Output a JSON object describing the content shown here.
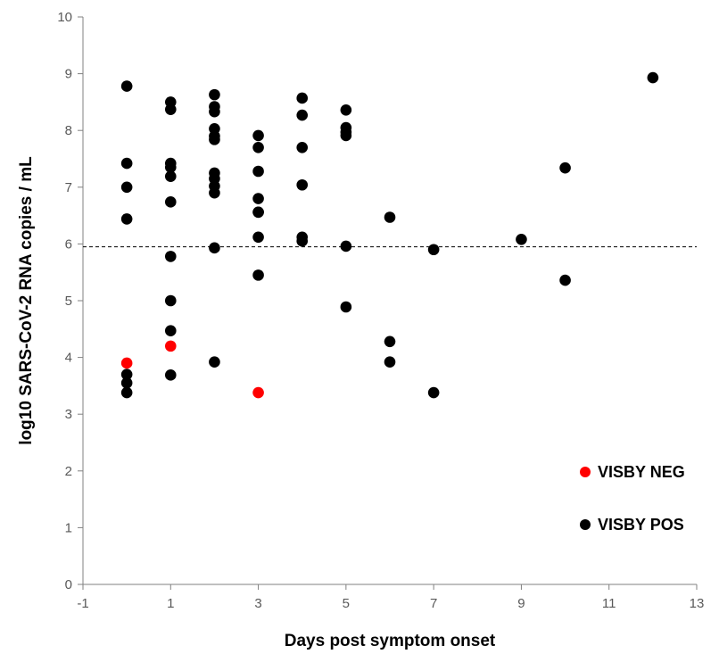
{
  "chart_data": {
    "type": "scatter",
    "xlabel": "Days post symptom onset",
    "ylabel": "log10 SARS-CoV-2 RNA copies / mL",
    "xlim": [
      -1,
      13
    ],
    "ylim": [
      0,
      10
    ],
    "xticks": [
      -1,
      1,
      3,
      5,
      7,
      9,
      11,
      13
    ],
    "yticks": [
      0,
      1,
      2,
      3,
      4,
      5,
      6,
      7,
      8,
      9,
      10
    ],
    "reference_line": {
      "y": 5.95,
      "style": "dashed"
    },
    "legend_position": "bottom-right",
    "grid": false,
    "series": [
      {
        "name": "VISBY NEG",
        "color": "#ff0000",
        "points": [
          {
            "x": 0,
            "y": 3.9
          },
          {
            "x": 1,
            "y": 4.2
          },
          {
            "x": 3,
            "y": 3.38
          }
        ]
      },
      {
        "name": "VISBY POS",
        "color": "#000000",
        "points": [
          {
            "x": 0,
            "y": 8.78
          },
          {
            "x": 0,
            "y": 7.42
          },
          {
            "x": 0,
            "y": 7.0
          },
          {
            "x": 0,
            "y": 6.44
          },
          {
            "x": 0,
            "y": 3.7
          },
          {
            "x": 0,
            "y": 3.55
          },
          {
            "x": 0,
            "y": 3.38
          },
          {
            "x": 1,
            "y": 8.5
          },
          {
            "x": 1,
            "y": 8.37
          },
          {
            "x": 1,
            "y": 7.42
          },
          {
            "x": 1,
            "y": 7.35
          },
          {
            "x": 1,
            "y": 7.19
          },
          {
            "x": 1,
            "y": 6.74
          },
          {
            "x": 1,
            "y": 5.78
          },
          {
            "x": 1,
            "y": 5.0
          },
          {
            "x": 1,
            "y": 4.47
          },
          {
            "x": 1,
            "y": 3.69
          },
          {
            "x": 2,
            "y": 8.63
          },
          {
            "x": 2,
            "y": 8.42
          },
          {
            "x": 2,
            "y": 8.33
          },
          {
            "x": 2,
            "y": 8.03
          },
          {
            "x": 2,
            "y": 7.9
          },
          {
            "x": 2,
            "y": 7.84
          },
          {
            "x": 2,
            "y": 7.25
          },
          {
            "x": 2,
            "y": 7.15
          },
          {
            "x": 2,
            "y": 7.02
          },
          {
            "x": 2,
            "y": 6.9
          },
          {
            "x": 2,
            "y": 5.93
          },
          {
            "x": 2,
            "y": 3.92
          },
          {
            "x": 3,
            "y": 7.91
          },
          {
            "x": 3,
            "y": 7.7
          },
          {
            "x": 3,
            "y": 7.28
          },
          {
            "x": 3,
            "y": 6.8
          },
          {
            "x": 3,
            "y": 6.56
          },
          {
            "x": 3,
            "y": 6.56
          },
          {
            "x": 3,
            "y": 6.12
          },
          {
            "x": 3,
            "y": 5.45
          },
          {
            "x": 4,
            "y": 8.57
          },
          {
            "x": 4,
            "y": 8.27
          },
          {
            "x": 4,
            "y": 7.7
          },
          {
            "x": 4,
            "y": 7.04
          },
          {
            "x": 4,
            "y": 6.12
          },
          {
            "x": 4,
            "y": 6.05
          },
          {
            "x": 5,
            "y": 8.36
          },
          {
            "x": 5,
            "y": 8.05
          },
          {
            "x": 5,
            "y": 7.97
          },
          {
            "x": 5,
            "y": 7.91
          },
          {
            "x": 5,
            "y": 5.96
          },
          {
            "x": 5,
            "y": 4.89
          },
          {
            "x": 6,
            "y": 6.47
          },
          {
            "x": 6,
            "y": 4.28
          },
          {
            "x": 6,
            "y": 3.92
          },
          {
            "x": 7,
            "y": 5.9
          },
          {
            "x": 7,
            "y": 3.38
          },
          {
            "x": 9,
            "y": 6.08
          },
          {
            "x": 10,
            "y": 7.34
          },
          {
            "x": 10,
            "y": 5.36
          },
          {
            "x": 12,
            "y": 8.93
          }
        ]
      }
    ]
  }
}
